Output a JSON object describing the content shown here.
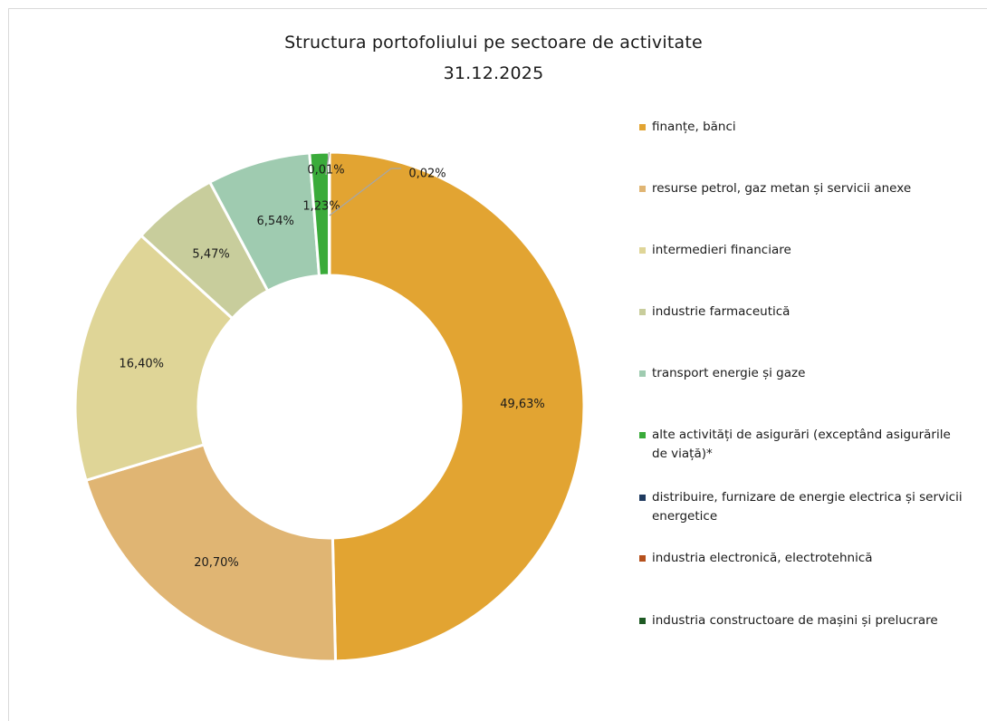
{
  "chart_data": {
    "type": "pie",
    "donut": true,
    "title": "Structura portofoliului pe sectoare de activitate",
    "subtitle": "31.12.2025",
    "legend_position": "right",
    "slices": [
      {
        "label": "finanțe, bănci",
        "value": 49.63,
        "display": "49,63%",
        "color": "#e2a432"
      },
      {
        "label": "resurse petrol, gaz metan și servicii anexe",
        "value": 20.7,
        "display": "20,70%",
        "color": "#e0b573"
      },
      {
        "label": "intermedieri financiare",
        "value": 16.4,
        "display": "16,40%",
        "color": "#dfd597"
      },
      {
        "label": "industrie farmaceutică",
        "value": 5.47,
        "display": "5,47%",
        "color": "#c8cd9c"
      },
      {
        "label": "transport energie și gaze",
        "value": 6.54,
        "display": "6,54%",
        "color": "#9fcbb0"
      },
      {
        "label": "alte activități de asigurări (exceptând asigurările de viață)*",
        "value": 1.23,
        "display": "1,23%",
        "color": "#3aab3a"
      },
      {
        "label": "distribuire, furnizare de energie electrica și servicii energetice",
        "value": 0.01,
        "display": "0,01%",
        "color": "#1f3a5f"
      },
      {
        "label": "industria electronică, electrotehnică",
        "value": 0.02,
        "display": "0,02%",
        "color": "#b5501c"
      },
      {
        "label": "industria constructoare de mașini și prelucrare",
        "value": 0.0,
        "display": "",
        "color": "#1e5a24"
      }
    ]
  }
}
